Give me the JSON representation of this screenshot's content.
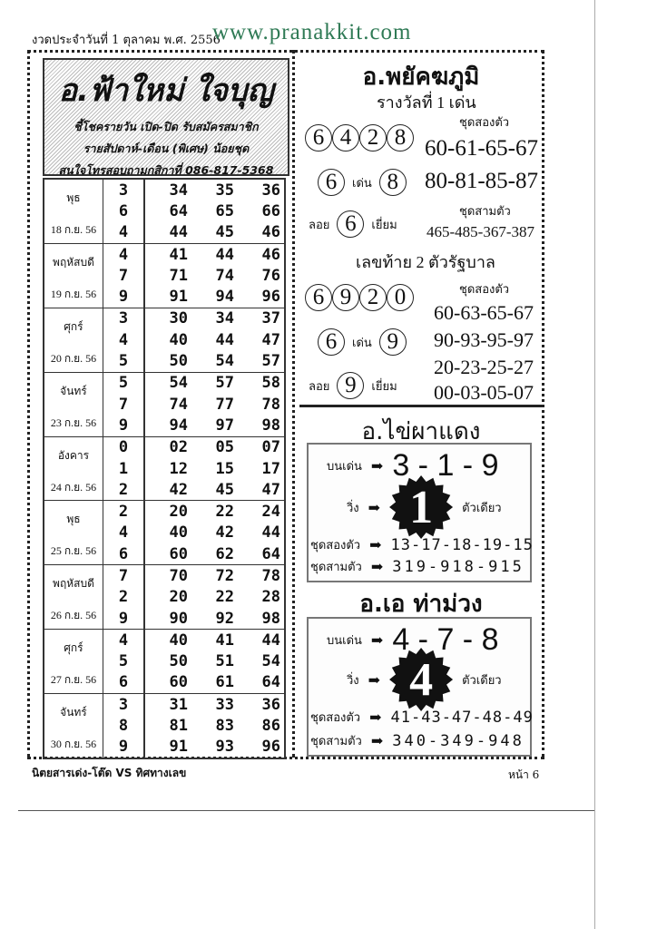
{
  "header": {
    "date": "งวดประจำวันที่ 1 ตุลาคม พ.ศ. 2556",
    "site": "www.pranakkit.com"
  },
  "promo": {
    "title": "อ.ฟ้าใหม่ ใจบุญ",
    "lines": [
      "ชี้โชครายวัน เปิด-ปิด รับสมัครสมาชิก",
      "รายสัปดาห์-เดือน (พิเศษ) น้อยชุด",
      "สนใจโทรสอบถามกสิกาที่ 086-817-5368"
    ]
  },
  "table": [
    {
      "day": "พุธ",
      "date": "18 ก.ย. 56",
      "rows": [
        [
          "3",
          "34",
          "35",
          "36"
        ],
        [
          "6",
          "64",
          "65",
          "66"
        ],
        [
          "4",
          "44",
          "45",
          "46"
        ]
      ]
    },
    {
      "day": "พฤหัสบดี",
      "date": "19 ก.ย. 56",
      "rows": [
        [
          "4",
          "41",
          "44",
          "46"
        ],
        [
          "7",
          "71",
          "74",
          "76"
        ],
        [
          "9",
          "91",
          "94",
          "96"
        ]
      ]
    },
    {
      "day": "ศุกร์",
      "date": "20 ก.ย. 56",
      "rows": [
        [
          "3",
          "30",
          "34",
          "37"
        ],
        [
          "4",
          "40",
          "44",
          "47"
        ],
        [
          "5",
          "50",
          "54",
          "57"
        ]
      ]
    },
    {
      "day": "จันทร์",
      "date": "23 ก.ย. 56",
      "rows": [
        [
          "5",
          "54",
          "57",
          "58"
        ],
        [
          "7",
          "74",
          "77",
          "78"
        ],
        [
          "9",
          "94",
          "97",
          "98"
        ]
      ]
    },
    {
      "day": "อังคาร",
      "date": "24 ก.ย. 56",
      "rows": [
        [
          "0",
          "02",
          "05",
          "07"
        ],
        [
          "1",
          "12",
          "15",
          "17"
        ],
        [
          "2",
          "42",
          "45",
          "47"
        ]
      ]
    },
    {
      "day": "พุธ",
      "date": "25 ก.ย. 56",
      "rows": [
        [
          "2",
          "20",
          "22",
          "24"
        ],
        [
          "4",
          "40",
          "42",
          "44"
        ],
        [
          "6",
          "60",
          "62",
          "64"
        ]
      ]
    },
    {
      "day": "พฤหัสบดี",
      "date": "26 ก.ย. 56",
      "rows": [
        [
          "7",
          "70",
          "72",
          "78"
        ],
        [
          "2",
          "20",
          "22",
          "28"
        ],
        [
          "9",
          "90",
          "92",
          "98"
        ]
      ]
    },
    {
      "day": "ศุกร์",
      "date": "27 ก.ย. 56",
      "rows": [
        [
          "4",
          "40",
          "41",
          "44"
        ],
        [
          "5",
          "50",
          "51",
          "54"
        ],
        [
          "6",
          "60",
          "61",
          "64"
        ]
      ]
    },
    {
      "day": "จันทร์",
      "date": "30 ก.ย. 56",
      "rows": [
        [
          "3",
          "31",
          "33",
          "36"
        ],
        [
          "8",
          "81",
          "83",
          "86"
        ],
        [
          "9",
          "91",
          "93",
          "96"
        ]
      ]
    }
  ],
  "payak": {
    "title": "อ.พยัคฆภูมิ",
    "sub1": "รางวัลที่ 1 เด่น",
    "circles1": [
      "6",
      "4",
      "2",
      "8"
    ],
    "two_label": "ชุดสองตัว",
    "two1": [
      "60-61-65-67",
      "80-81-85-87"
    ],
    "lead_a": "6",
    "lead_word": "เด่น",
    "lead_b": "8",
    "float_word": "ลอย",
    "float1": "6",
    "excellent": "เยี่ยม",
    "three_label": "ชุดสามตัว",
    "three1": "465-485-367-387",
    "sub2": "เลขท้าย 2 ตัวรัฐบาล",
    "circles2": [
      "6",
      "9",
      "2",
      "0"
    ],
    "two2": [
      "60-63-65-67",
      "90-93-95-97",
      "20-23-25-27",
      "00-03-05-07"
    ],
    "lead2_a": "6",
    "lead2_b": "9",
    "float2": "9"
  },
  "kaipha": {
    "title": "อ.ไข่ผาแดง",
    "top_label": "บนเด่น",
    "top": "3 - 1 - 9",
    "run_label": "วิ่ง",
    "run": "1",
    "single": "ตัวเดียว",
    "two_label": "ชุดสองตัว",
    "two": "13-17-18-19-15",
    "three_label": "ชุดสามตัว",
    "three": "319-918-915"
  },
  "aeh": {
    "title": "อ.เอ ท่าม่วง",
    "top_label": "บนเด่น",
    "top": "4 - 7 - 8",
    "run_label": "วิ่ง",
    "run": "4",
    "single": "ตัวเดียว",
    "two_label": "ชุดสองตัว",
    "two": "41-43-47-48-49",
    "three_label": "ชุดสามตัว",
    "three": "340-349-948"
  },
  "footer": {
    "magazine": "นิตยสารเด่ง-โต๊ด VS ทิศทางเลข",
    "page": "หน้า 6"
  }
}
